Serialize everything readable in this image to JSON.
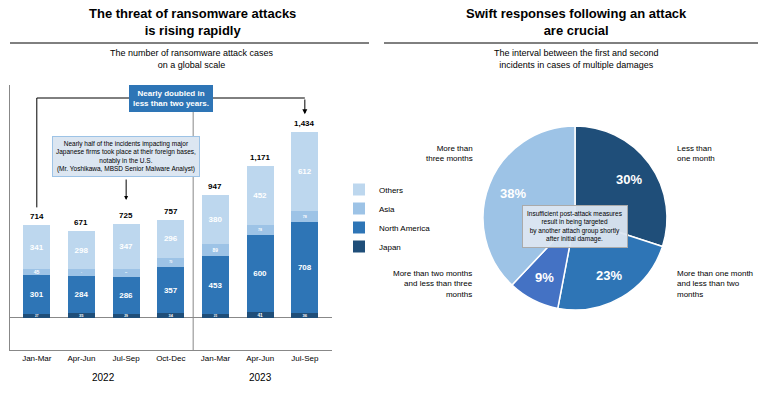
{
  "chart_data": [
    {
      "type": "bar",
      "title": "The threat of ransomware attacks\nis rising rapidly",
      "subtitle": "The number of ransomware attack cases\non a global scale",
      "categories": [
        "Jan-Mar",
        "Apr-Jun",
        "Jul-Sep",
        "Oct-Dec",
        "Jan-Mar",
        "Apr-Jun",
        "Jul-Sep"
      ],
      "group_labels": [
        "2022",
        "2023"
      ],
      "series": [
        {
          "name": "Japan",
          "color": "#1f4e79",
          "values": [
            27,
            35,
            29,
            34,
            25,
            41,
            36
          ]
        },
        {
          "name": "North America",
          "color": "#2e75b6",
          "values": [
            301,
            284,
            286,
            357,
            453,
            600,
            708
          ]
        },
        {
          "name": "Asia",
          "color": "#9dc3e6",
          "values": [
            45,
            54,
            63,
            70,
            89,
            78,
            78
          ]
        },
        {
          "name": "Others",
          "color": "#bdd7ee",
          "values": [
            341,
            298,
            347,
            296,
            380,
            452,
            612
          ]
        }
      ],
      "totals": [
        714,
        671,
        725,
        757,
        947,
        1171,
        1434
      ],
      "total_labels": [
        "714",
        "671",
        "725",
        "757",
        "947",
        "1,171",
        "1,434"
      ],
      "annotations": [
        "Nearly doubled in\nless than two years.",
        "Nearly half of the incidents impacting major\nJapanese firms took place at their foreign bases,\nnotably in the U.S.\n(Mr. Yoshikawa, MBSD Senior Malware Analyst)"
      ],
      "stacked": true,
      "data_labels": true,
      "tick_labels": "x",
      "grid": false,
      "legend": "right",
      "ylim": [
        -250,
        1800
      ],
      "yticks": []
    },
    {
      "type": "pie",
      "title": "Swift responses following an attack\nare crucial",
      "subtitle": "The interval between the first and second\nincidents in cases of multiple damages",
      "categories": [
        "Less than\none month",
        "More than one month\nand less than two\nmonths",
        "More than two months\nand less than three\nmonths",
        "More than\nthree months"
      ],
      "values": [
        30,
        23,
        9,
        38
      ],
      "value_labels": [
        "30%",
        "23%",
        "9%",
        "38%"
      ],
      "colors": [
        "#1f4e79",
        "#2e75b6",
        "#4472c4",
        "#9dc3e6"
      ],
      "data_labels": true,
      "annotations": [
        "Insufficient post-attack measures\nresult in being targeted\nby another attach group shortly\nafter initial damage."
      ]
    }
  ]
}
